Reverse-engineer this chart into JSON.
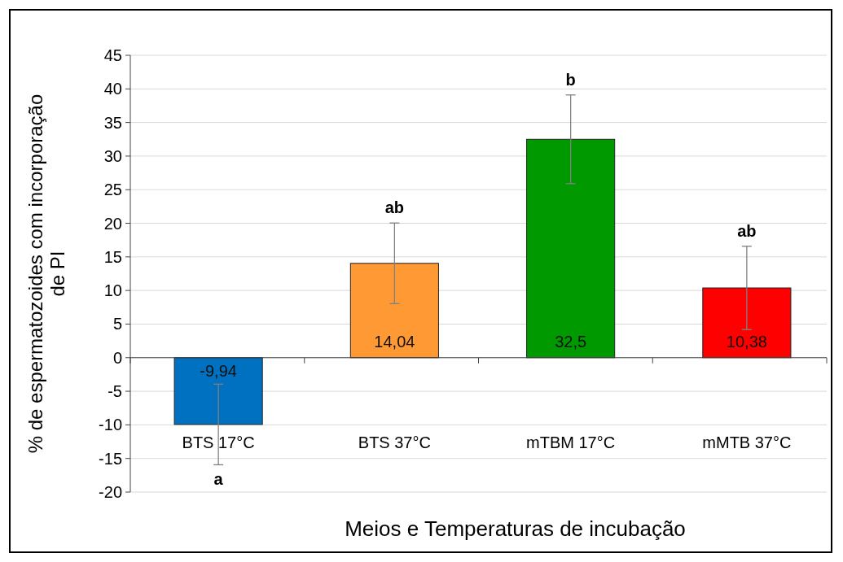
{
  "chart_data": {
    "type": "bar",
    "xlabel": "Meios e Temperaturas de incubação",
    "ylabel": "% de espermatozoides com incorporação de PI",
    "categories": [
      "BTS 17°C",
      "BTS 37°C",
      "mTBM 17°C",
      "mMTB 37°C"
    ],
    "values": [
      -9.94,
      14.04,
      32.5,
      10.38
    ],
    "colors": [
      "#0070c0",
      "#ff9933",
      "#009900",
      "#ff0000"
    ],
    "errors": [
      6,
      6,
      6.6,
      6.2
    ],
    "value_labels": [
      "-9,94",
      "14,04",
      "32,5",
      "10,38"
    ],
    "ylim": [
      -20,
      45
    ],
    "yticks": [
      -20,
      -15,
      -10,
      -5,
      0,
      5,
      10,
      15,
      20,
      25,
      30,
      35,
      40,
      45
    ],
    "grid": "y",
    "annotations": [
      {
        "text": "a",
        "x": "BTS 17°C",
        "y": -15.94
      },
      {
        "text": "ab",
        "x": "BTS 37°C",
        "y": 20.04
      },
      {
        "text": "b",
        "x": "mTBM 17°C",
        "y": 39.1
      },
      {
        "text": "ab",
        "x": "mMTB 37°C",
        "y": 16.58
      }
    ]
  }
}
